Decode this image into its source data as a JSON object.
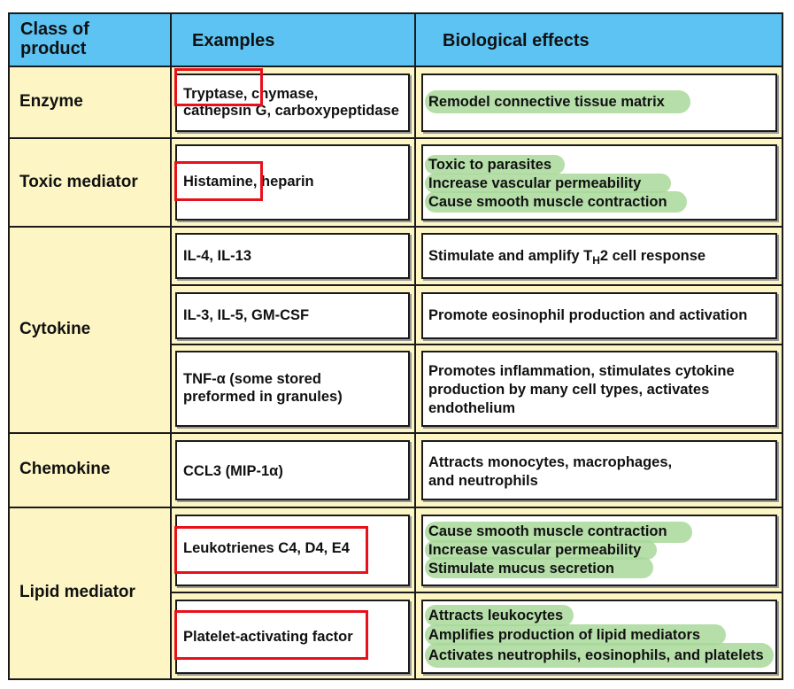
{
  "header": {
    "col1": "Class of\nproduct",
    "col2": "Examples",
    "col3": "Biological effects"
  },
  "rows": [
    {
      "class": "Enzyme",
      "entries": [
        {
          "examples": [
            "Tryptase, chymase,",
            "cathepsin G, carboxypeptidase"
          ],
          "effects": [
            "Remodel connective tissue matrix"
          ]
        }
      ]
    },
    {
      "class": "Toxic mediator",
      "entries": [
        {
          "examples": [
            "Histamine, heparin"
          ],
          "effects": [
            "Toxic to parasites",
            "Increase vascular permeability",
            "Cause smooth muscle contraction"
          ]
        }
      ]
    },
    {
      "class": "Cytokine",
      "entries": [
        {
          "examples": [
            "IL-4, IL-13"
          ],
          "effects_prefix": "Stimulate and amplify T",
          "effects_sub": "H",
          "effects_suffix": "2  cell response"
        },
        {
          "examples": [
            "IL-3, IL-5, GM-CSF"
          ],
          "effects": [
            "Promote eosinophil production and activation"
          ]
        },
        {
          "examples": [
            "TNF-α  (some stored",
            "preformed in  granules)"
          ],
          "effects": [
            "Promotes inflammation, stimulates cytokine",
            "production by many cell types, activates",
            "endothelium"
          ]
        }
      ]
    },
    {
      "class": "Chemokine",
      "entries": [
        {
          "examples": [
            "CCL3  (MIP-1α)"
          ],
          "effects": [
            "Attracts monocytes, macrophages,",
            "and neutrophils"
          ]
        }
      ]
    },
    {
      "class": "Lipid mediator",
      "entries": [
        {
          "examples": [
            "Leukotrienes C4, D4, E4"
          ],
          "effects": [
            "Cause  smooth muscle contraction",
            "Increase  vascular permeability",
            "Stimulate mucus secretion"
          ]
        },
        {
          "examples": [
            "Platelet-activating factor"
          ],
          "effects": [
            "Attracts leukocytes",
            "Amplifies production of lipid mediators",
            "Activates neutrophils, eosinophils, and platelets"
          ]
        }
      ]
    }
  ],
  "colors": {
    "header_bg": "#5cc3f3",
    "table_bg": "#fdf6c4",
    "highlight_green": "#a8d89a",
    "annotation_red": "#e8111b"
  }
}
